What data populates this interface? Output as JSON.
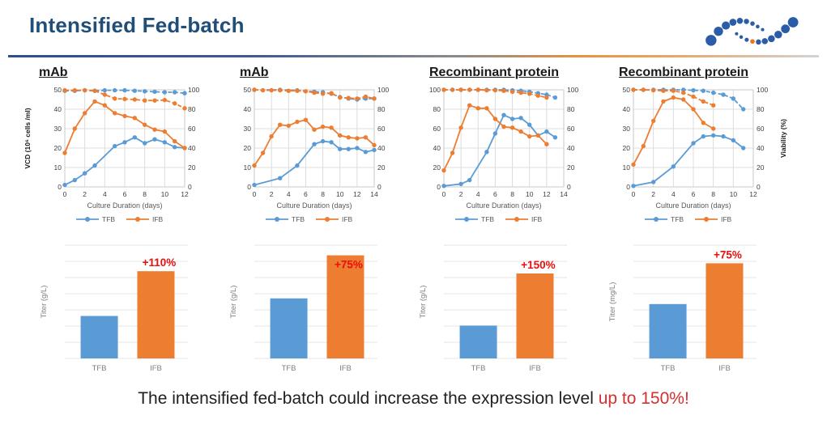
{
  "header": {
    "title": "Intensified Fed-batch",
    "logo": "dotted-wave-logo"
  },
  "colors": {
    "tfb": "#5B9BD5",
    "ifb": "#ED7D31",
    "title_blue": "#1F4E79",
    "annotation_red": "#E80F0F",
    "caption_red": "#D43030",
    "grid": "#DCDCDC",
    "logo_blue": "#2B5CA8",
    "logo_orange": "#E87722"
  },
  "caption": {
    "text": "The intensified fed-batch could increase the expression level ",
    "highlight": "up to 150%!"
  },
  "chart_data": [
    {
      "type": "line",
      "title": "mAb",
      "xlabel": "Culture Duration (days)",
      "ylabel_left": "VCD (10⁶ cells /ml)",
      "ylabel_right": "",
      "xlim": [
        0,
        12
      ],
      "xticks": [
        0,
        2,
        4,
        6,
        8,
        10,
        12
      ],
      "ylim_left": [
        0,
        50
      ],
      "yticks_left": [
        0,
        10,
        20,
        30,
        40,
        50
      ],
      "ylim_right": [
        0,
        100
      ],
      "yticks_right": [
        0,
        20,
        40,
        60,
        80,
        100
      ],
      "grid": true,
      "legend": [
        "TFB",
        "IFB"
      ],
      "legend_position": "bottom",
      "series": [
        {
          "name": "TFB VCD",
          "axis": "left",
          "style": "solid",
          "color_key": "tfb",
          "x": [
            0,
            1,
            2,
            3,
            5,
            6,
            7,
            8,
            9,
            10,
            11,
            12
          ],
          "y": [
            1,
            3.5,
            7,
            11,
            21,
            23,
            25.5,
            22.5,
            24.5,
            23,
            20.5,
            20
          ]
        },
        {
          "name": "IFB VCD",
          "axis": "left",
          "style": "solid",
          "color_key": "ifb",
          "x": [
            0,
            1,
            2,
            3,
            4,
            5,
            6,
            7,
            8,
            9,
            10,
            11,
            12
          ],
          "y": [
            17.5,
            30,
            38,
            44,
            42,
            38,
            36.5,
            35.5,
            32,
            29.5,
            28.5,
            23.5,
            20
          ]
        },
        {
          "name": "TFB Viability",
          "axis": "right",
          "style": "dashed",
          "color_key": "tfb",
          "x": [
            0,
            1,
            2,
            3,
            4,
            5,
            6,
            7,
            8,
            9,
            10,
            11,
            12
          ],
          "y": [
            99,
            99,
            99.5,
            99,
            99.5,
            99.5,
            99.5,
            99,
            98.5,
            98,
            97.5,
            97.5,
            96.5
          ]
        },
        {
          "name": "IFB Viability",
          "axis": "right",
          "style": "dashed",
          "color_key": "ifb",
          "x": [
            0,
            1,
            2,
            3,
            4,
            5,
            6,
            7,
            8,
            9,
            10,
            11,
            12
          ],
          "y": [
            99.5,
            99.5,
            99.5,
            99,
            95,
            91,
            90.5,
            90,
            89,
            89,
            89.5,
            86,
            81
          ]
        }
      ]
    },
    {
      "type": "line",
      "title": "mAb",
      "xlabel": "Culture Duration (days)",
      "ylabel_left": "",
      "ylabel_right": "",
      "xlim": [
        0,
        14
      ],
      "xticks": [
        0,
        2,
        4,
        6,
        8,
        10,
        12,
        14
      ],
      "ylim_left": [
        0,
        50
      ],
      "yticks_left": [
        0,
        10,
        20,
        30,
        40,
        50
      ],
      "ylim_right": [
        0,
        100
      ],
      "yticks_right": [
        0,
        20,
        40,
        60,
        80,
        100
      ],
      "grid": true,
      "legend": [
        "TFB",
        "IFB"
      ],
      "legend_position": "bottom",
      "series": [
        {
          "name": "TFB VCD",
          "axis": "left",
          "style": "solid",
          "color_key": "tfb",
          "x": [
            0,
            3,
            5,
            7,
            8,
            9,
            10,
            11,
            12,
            13,
            14
          ],
          "y": [
            1,
            4.5,
            11,
            22,
            23.5,
            23,
            19.5,
            19.5,
            20,
            18,
            19
          ]
        },
        {
          "name": "IFB VCD",
          "axis": "left",
          "style": "solid",
          "color_key": "ifb",
          "x": [
            0,
            1,
            2,
            3,
            4,
            5,
            6,
            7,
            8,
            9,
            10,
            11,
            12,
            13,
            14
          ],
          "y": [
            11,
            17.5,
            26,
            32,
            31.5,
            33.5,
            34.5,
            29.5,
            31,
            30.5,
            26.5,
            25.5,
            25,
            25.5,
            21.5
          ]
        },
        {
          "name": "TFB Viability",
          "axis": "right",
          "style": "dashed",
          "color_key": "tfb",
          "x": [
            0,
            3,
            5,
            7,
            8,
            9,
            10,
            11,
            12,
            13,
            14
          ],
          "y": [
            100,
            100,
            99.5,
            98,
            97.5,
            96,
            92.5,
            91,
            90,
            91,
            91
          ]
        },
        {
          "name": "IFB Viability",
          "axis": "right",
          "style": "dashed",
          "color_key": "ifb",
          "x": [
            0,
            1,
            2,
            3,
            4,
            5,
            6,
            7,
            8,
            9,
            10,
            11,
            12,
            13,
            14
          ],
          "y": [
            100,
            99.5,
            99.5,
            99.5,
            99,
            99,
            98.5,
            97,
            96,
            96.5,
            92,
            91.5,
            91,
            93,
            91
          ]
        }
      ]
    },
    {
      "type": "line",
      "title": "Recombinant protein",
      "xlabel": "Culture Duration (days)",
      "ylabel_left": "",
      "ylabel_right": "",
      "xlim": [
        0,
        14
      ],
      "xticks": [
        0,
        2,
        4,
        6,
        8,
        10,
        12,
        14
      ],
      "ylim_left": [
        0,
        100
      ],
      "yticks_left": [
        0,
        20,
        40,
        60,
        80,
        100
      ],
      "ylim_right": [
        0,
        100
      ],
      "yticks_right": [
        0,
        20,
        40,
        60,
        80,
        100
      ],
      "grid": true,
      "legend": [
        "TFB",
        "IFB"
      ],
      "legend_position": "bottom",
      "series": [
        {
          "name": "TFB VCD",
          "axis": "left",
          "style": "solid",
          "color_key": "tfb",
          "x": [
            0,
            2,
            3,
            5,
            6,
            7,
            8,
            9,
            10,
            11,
            12,
            13
          ],
          "y": [
            1,
            3,
            7,
            36,
            55,
            74,
            70,
            71,
            64,
            53,
            57,
            51
          ]
        },
        {
          "name": "IFB VCD",
          "axis": "left",
          "style": "solid",
          "color_key": "ifb",
          "x": [
            0,
            1,
            2,
            3,
            4,
            5,
            6,
            7,
            8,
            9,
            10,
            11,
            12
          ],
          "y": [
            17,
            35,
            61,
            84,
            81,
            81,
            70,
            62,
            61,
            57,
            52,
            53,
            44
          ]
        },
        {
          "name": "TFB Viability",
          "axis": "right",
          "style": "dashed",
          "color_key": "tfb",
          "x": [
            0,
            1,
            2,
            3,
            4,
            5,
            6,
            7,
            8,
            9,
            10,
            11,
            12,
            13
          ],
          "y": [
            100,
            100,
            100,
            100,
            100,
            100,
            100,
            100,
            99.5,
            99,
            98,
            96.5,
            95,
            92
          ]
        },
        {
          "name": "IFB Viability",
          "axis": "right",
          "style": "dashed",
          "color_key": "ifb",
          "x": [
            0,
            1,
            2,
            3,
            4,
            5,
            6,
            7,
            8,
            9,
            10,
            11,
            12
          ],
          "y": [
            100,
            100,
            100,
            100,
            100,
            99.5,
            99.5,
            99,
            98,
            97,
            96,
            94,
            92
          ]
        }
      ]
    },
    {
      "type": "line",
      "title": "Recombinant protein",
      "xlabel": "Culture Duration (days)",
      "ylabel_left": "",
      "ylabel_right": "Viability (%)",
      "xlim": [
        0,
        12
      ],
      "xticks": [
        0,
        2,
        4,
        6,
        8,
        10,
        12
      ],
      "ylim_left": [
        0,
        50
      ],
      "yticks_left": [
        0,
        10,
        20,
        30,
        40,
        50
      ],
      "ylim_right": [
        0,
        100
      ],
      "yticks_right": [
        0,
        20,
        40,
        60,
        80,
        100
      ],
      "grid": true,
      "legend": [
        "TFB",
        "IFB"
      ],
      "legend_position": "bottom",
      "series": [
        {
          "name": "TFB VCD",
          "axis": "left",
          "style": "solid",
          "color_key": "tfb",
          "x": [
            0,
            2,
            4,
            6,
            7,
            8,
            9,
            10,
            11
          ],
          "y": [
            0.5,
            2.5,
            10.5,
            22.5,
            26,
            26.5,
            26,
            24,
            20
          ]
        },
        {
          "name": "IFB VCD",
          "axis": "left",
          "style": "solid",
          "color_key": "ifb",
          "x": [
            0,
            1,
            2,
            3,
            4,
            5,
            6,
            7,
            8
          ],
          "y": [
            11.5,
            21,
            34,
            44,
            46,
            45,
            40,
            33,
            30
          ]
        },
        {
          "name": "TFB Viability",
          "axis": "right",
          "style": "dashed",
          "color_key": "tfb",
          "x": [
            0,
            1,
            2,
            3,
            4,
            5,
            6,
            7,
            8,
            9,
            10,
            11
          ],
          "y": [
            100,
            100,
            100,
            100,
            100,
            100,
            99.5,
            99,
            97,
            95,
            91,
            80
          ]
        },
        {
          "name": "IFB Viability",
          "axis": "right",
          "style": "dashed",
          "color_key": "ifb",
          "x": [
            0,
            1,
            2,
            3,
            4,
            5,
            6,
            7,
            8
          ],
          "y": [
            100,
            100,
            99.5,
            99,
            99,
            97,
            93,
            88,
            84
          ]
        }
      ]
    },
    {
      "type": "bar",
      "ylabel": "Titer (g/L)",
      "categories": [
        "TFB",
        "IFB"
      ],
      "values_rel_pct": [
        37.5,
        77
      ],
      "annotation": "+110%",
      "annotation_on": "IFB",
      "annotation_inside": false,
      "grid": true
    },
    {
      "type": "bar",
      "ylabel": "Titer (g/L)",
      "categories": [
        "TFB",
        "IFB"
      ],
      "values_rel_pct": [
        53,
        91
      ],
      "annotation": "+75%",
      "annotation_on": "IFB",
      "annotation_inside": true,
      "grid": true
    },
    {
      "type": "bar",
      "ylabel": "Titer (g/L)",
      "categories": [
        "TFB",
        "IFB"
      ],
      "values_rel_pct": [
        29,
        75
      ],
      "annotation": "+150%",
      "annotation_on": "IFB",
      "annotation_inside": false,
      "grid": true
    },
    {
      "type": "bar",
      "ylabel": "Titer (mg/L)",
      "categories": [
        "TFB",
        "IFB"
      ],
      "values_rel_pct": [
        48,
        84
      ],
      "annotation": "+75%",
      "annotation_on": "IFB",
      "annotation_inside": false,
      "grid": true
    }
  ]
}
